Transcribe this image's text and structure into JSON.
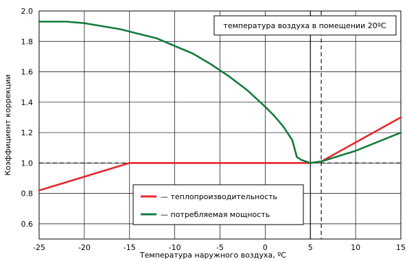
{
  "chart_data": {
    "type": "line",
    "xlabel": "Температура наружного воздуха, ºC",
    "ylabel": "Коэффициент коррекции",
    "xlim": [
      -25,
      15
    ],
    "ylim": [
      0.5,
      2.0
    ],
    "x_ticks": [
      -25,
      -20,
      -15,
      -10,
      -5,
      0,
      5,
      10,
      15
    ],
    "x_tick_labels": [
      "-25",
      "-20",
      "-15",
      "-10",
      "-5",
      "0",
      "5",
      "10",
      "15"
    ],
    "y_ticks": [
      0.6,
      0.8,
      1.0,
      1.2,
      1.4,
      1.6,
      1.8,
      2.0
    ],
    "y_tick_labels": [
      "0.6",
      "0.8",
      "1.0",
      "1.2",
      "1.4",
      "1.6",
      "1.8",
      "2.0"
    ],
    "grid": true,
    "annotation": "температура воздуха в помещении 20ºC",
    "reference_lines": [
      {
        "orientation": "horizontal",
        "value": 1.0,
        "style": "dashed"
      },
      {
        "orientation": "vertical",
        "value": 5,
        "style": "solid"
      },
      {
        "orientation": "vertical",
        "value": 6.2,
        "style": "dashed"
      }
    ],
    "legend_position": "bottom-center",
    "series": [
      {
        "name": "— теплопроизводительность",
        "color": "#e8262a",
        "x": [
          -25,
          -15,
          5,
          6.2,
          15
        ],
        "y": [
          0.82,
          1.0,
          1.0,
          1.01,
          1.3
        ]
      },
      {
        "name": "— потребляемая мощность",
        "color": "#137a3c",
        "x": [
          -25,
          -22,
          -20,
          -18,
          -16,
          -14,
          -12,
          -10,
          -8,
          -6,
          -4,
          -2,
          0,
          1,
          2,
          3,
          3.5,
          4,
          5,
          6.2,
          10,
          15
        ],
        "y": [
          1.93,
          1.93,
          1.92,
          1.9,
          1.88,
          1.85,
          1.82,
          1.77,
          1.72,
          1.65,
          1.57,
          1.48,
          1.37,
          1.31,
          1.24,
          1.15,
          1.04,
          1.02,
          1.0,
          1.01,
          1.08,
          1.2
        ]
      }
    ]
  }
}
